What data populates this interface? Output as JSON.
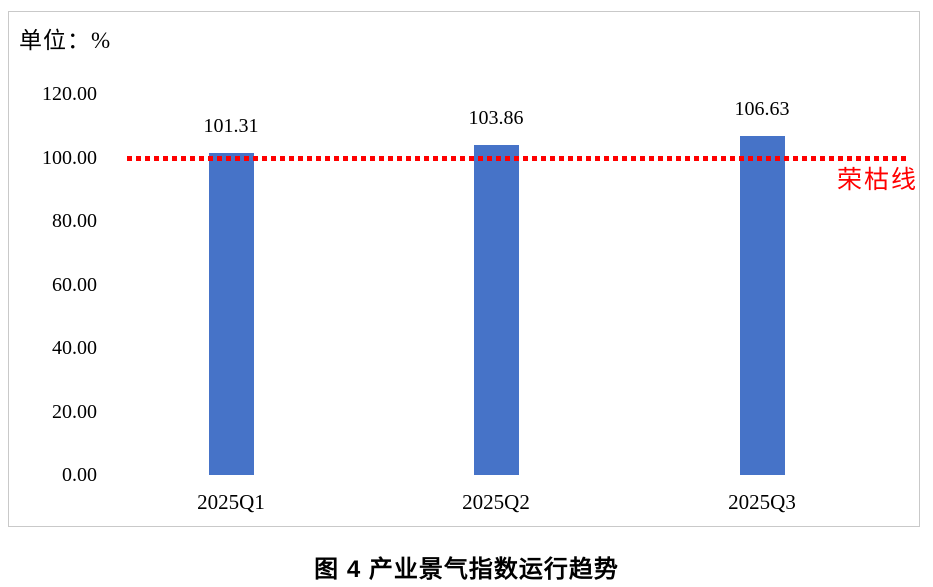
{
  "unit_label": "单位：%",
  "caption": "图 4  产业景气指数运行趋势",
  "chart_data": {
    "type": "bar",
    "title": "图 4 产业景气指数运行趋势",
    "unit": "%",
    "unit_label": "单位：%",
    "categories": [
      "2025Q1",
      "2025Q2",
      "2025Q3"
    ],
    "values": [
      101.31,
      103.86,
      106.63
    ],
    "value_labels": [
      "101.31",
      "103.86",
      "106.63"
    ],
    "ylim": [
      0,
      120
    ],
    "ytick_step": 20,
    "ytick_labels": [
      "120.00",
      "100.00",
      "80.00",
      "60.00",
      "40.00",
      "20.00",
      "0.00"
    ],
    "grid": false,
    "legend": "none",
    "reference_line": {
      "value": 100,
      "label": "荣枯线",
      "style": "dotted",
      "color": "#ff0000"
    },
    "bar_color": "#4673c8"
  },
  "colors": {
    "bar": "#4673c8",
    "reference": "#ff0000",
    "frame_border": "#c9c9c9",
    "text": "#000000"
  }
}
